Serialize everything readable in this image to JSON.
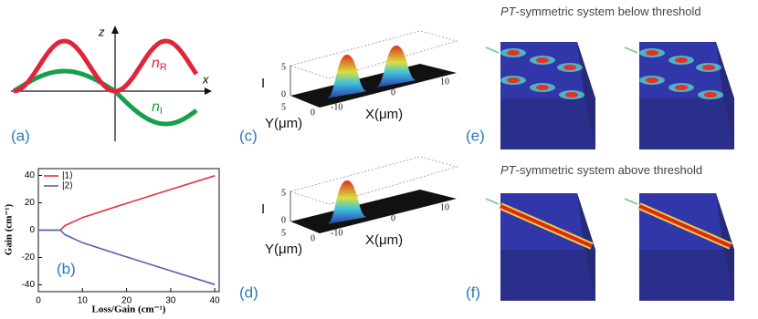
{
  "panel_a": {
    "label": "(a)",
    "z_axis": "z",
    "x_axis": "x",
    "real_part": "n",
    "real_sub": "R",
    "imag_part": "n",
    "imag_sub": "I"
  },
  "chart_data": {
    "type": "line",
    "label": "(b)",
    "x_label": "Loss/Gain (cm⁻¹)",
    "y_label": "Gain (cm⁻¹)",
    "x": [
      0,
      4,
      5,
      6,
      10,
      20,
      30,
      40
    ],
    "series": [
      {
        "name": "|1⟩",
        "color": "#e8303c",
        "values": [
          0,
          0,
          0,
          3.3,
          9.2,
          19.6,
          29.7,
          39.8
        ]
      },
      {
        "name": "|2⟩",
        "color": "#5a5fb0",
        "values": [
          0,
          0,
          0,
          -3.3,
          -9.2,
          -19.6,
          -29.7,
          -39.8
        ]
      }
    ],
    "xlim": [
      0,
      41
    ],
    "ylim": [
      -45,
      45
    ],
    "xticks": [
      0,
      10,
      20,
      30,
      40
    ],
    "yticks": [
      -40,
      -20,
      0,
      20,
      40
    ],
    "legend": "upper left"
  },
  "panel_c": {
    "label": "(c)",
    "i_axis": "I",
    "y_axis": "Y(μm)",
    "x_axis": "X(μm)",
    "i_ticks": [
      "5",
      "0"
    ],
    "y_ticks": [
      "5",
      "0"
    ],
    "x_ticks": [
      "-10",
      "0",
      "10"
    ]
  },
  "panel_d": {
    "label": "(d)",
    "i_axis": "I",
    "y_axis": "Y(μm)",
    "x_axis": "X(μm)",
    "i_ticks": [
      "5",
      "0"
    ],
    "y_ticks": [
      "5",
      "0"
    ],
    "x_ticks": [
      "-10",
      "0",
      "10"
    ]
  },
  "panel_e": {
    "label": "(e)",
    "title_italic": "PT",
    "title": "-symmetric system below threshold"
  },
  "panel_f": {
    "label": "(f)",
    "title_italic": "PT",
    "title": "-symmetric system above threshold"
  }
}
